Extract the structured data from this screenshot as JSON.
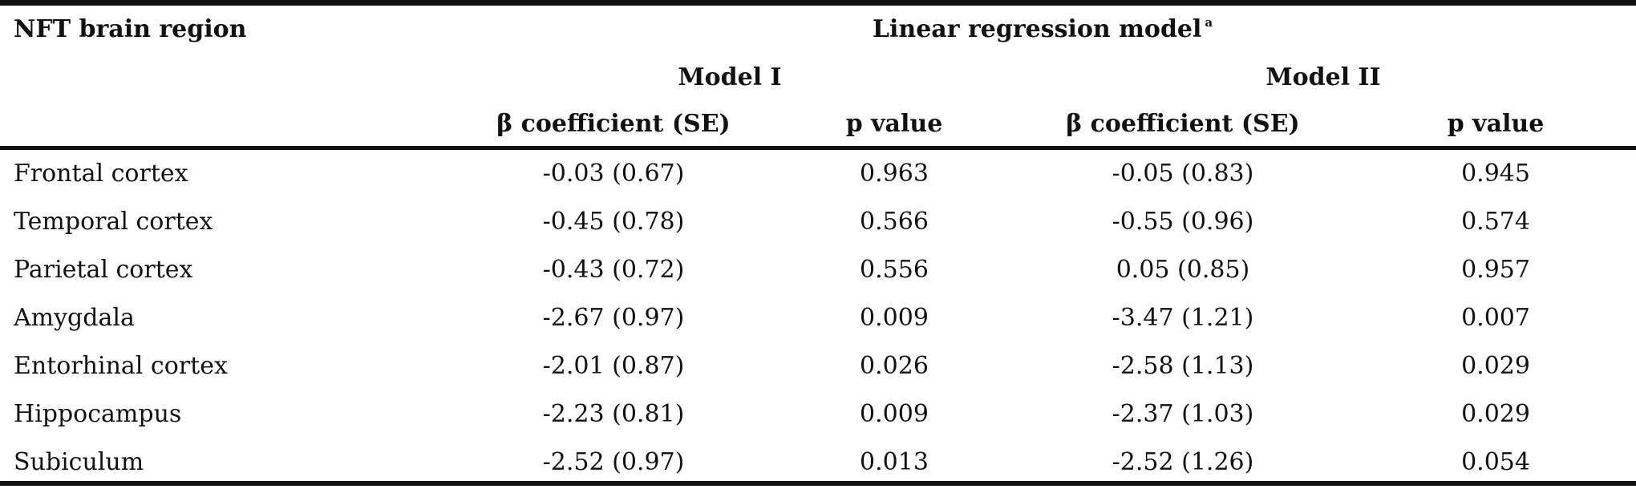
{
  "header": {
    "region_label": "NFT brain region",
    "model_group_label": "Linear regression model",
    "model_group_sup": "a",
    "model_1_label": "Model I",
    "model_2_label": "Model II",
    "columns": [
      "β coefficient (SE)",
      "p value",
      "β coefficient (SE)",
      "p value"
    ]
  },
  "rows": [
    {
      "region": "Frontal cortex",
      "m1_beta": "-0.03 (0.67)",
      "m1_p": "0.963",
      "m2_beta": "-0.05 (0.83)",
      "m2_p": "0.945"
    },
    {
      "region": "Temporal cortex",
      "m1_beta": "-0.45 (0.78)",
      "m1_p": "0.566",
      "m2_beta": "-0.55 (0.96)",
      "m2_p": "0.574"
    },
    {
      "region": "Parietal cortex",
      "m1_beta": "-0.43 (0.72)",
      "m1_p": "0.556",
      "m2_beta": "0.05 (0.85)",
      "m2_p": "0.957"
    },
    {
      "region": "Amygdala",
      "m1_beta": "-2.67 (0.97)",
      "m1_p": "0.009",
      "m2_beta": "-3.47 (1.21)",
      "m2_p": "0.007"
    },
    {
      "region": "Entorhinal cortex",
      "m1_beta": "-2.01 (0.87)",
      "m1_p": "0.026",
      "m2_beta": "-2.58 (1.13)",
      "m2_p": "0.029"
    },
    {
      "region": "Hippocampus",
      "m1_beta": "-2.23 (0.81)",
      "m1_p": "0.009",
      "m2_beta": "-2.37 (1.03)",
      "m2_p": "0.029"
    },
    {
      "region": "Subiculum",
      "m1_beta": "-2.52 (0.97)",
      "m1_p": "0.013",
      "m2_beta": "-2.52 (1.26)",
      "m2_p": "0.054"
    }
  ]
}
